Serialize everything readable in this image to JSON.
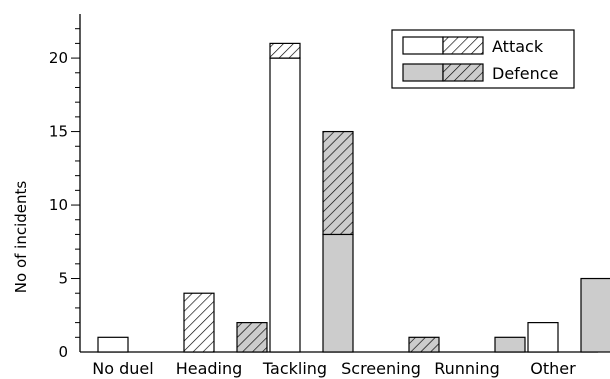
{
  "chart_data": {
    "type": "bar",
    "stacked": true,
    "categories": [
      "No duel",
      "Heading",
      "Tackling",
      "Screening",
      "Running",
      "Other"
    ],
    "ylabel": "No of incidents",
    "ylim": [
      0,
      23
    ],
    "yticks": [
      0,
      5,
      10,
      15,
      20
    ],
    "groups": [
      {
        "name": "Attack",
        "base_color": "#ffffff",
        "segments": [
          {
            "pattern": "plain",
            "values": [
              1,
              0,
              20,
              0,
              0,
              2
            ]
          },
          {
            "pattern": "hatched",
            "values": [
              0,
              4,
              1,
              0,
              0,
              0
            ]
          }
        ]
      },
      {
        "name": "Defence",
        "base_color": "#cccccc",
        "segments": [
          {
            "pattern": "plain",
            "values": [
              0,
              0,
              8,
              0,
              1,
              5
            ]
          },
          {
            "pattern": "hatched",
            "values": [
              0,
              2,
              7,
              1,
              0,
              0
            ]
          }
        ]
      }
    ],
    "legend": {
      "position": "top-right",
      "entries": [
        {
          "label": "Attack",
          "base_color": "#ffffff"
        },
        {
          "label": "Defence",
          "base_color": "#cccccc"
        }
      ]
    },
    "grid": false
  }
}
